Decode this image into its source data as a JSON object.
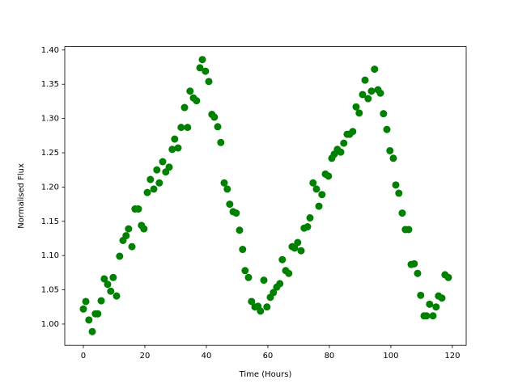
{
  "chart_data": {
    "type": "scatter",
    "xlabel": "Time (Hours)",
    "ylabel": "Normalised Flux",
    "color": "#008000",
    "x": [
      0,
      0.8,
      1.8,
      2.9,
      3.9,
      4.7,
      5.8,
      6.8,
      7.9,
      8.9,
      9.7,
      10.8,
      11.8,
      12.9,
      13.9,
      14.7,
      15.8,
      16.8,
      17.9,
      18.9,
      19.7,
      20.8,
      21.8,
      22.9,
      23.9,
      24.7,
      25.8,
      26.8,
      27.9,
      28.9,
      29.7,
      30.8,
      31.8,
      32.9,
      33.9,
      34.7,
      35.8,
      36.8,
      37.9,
      38.7,
      39.7,
      40.8,
      41.8,
      42.6,
      43.7,
      44.7,
      45.8,
      46.8,
      47.6,
      48.7,
      49.7,
      50.8,
      51.8,
      52.6,
      53.7,
      54.7,
      55.8,
      56.8,
      57.6,
      58.7,
      59.7,
      60.8,
      61.8,
      62.9,
      63.9,
      64.7,
      65.8,
      66.8,
      67.9,
      68.7,
      69.7,
      70.8,
      71.8,
      72.9,
      73.7,
      74.7,
      75.8,
      76.6,
      77.6,
      78.7,
      79.7,
      80.8,
      81.6,
      82.6,
      83.7,
      84.7,
      85.8,
      86.6,
      87.6,
      88.7,
      89.7,
      90.8,
      91.6,
      92.6,
      93.7,
      94.7,
      95.8,
      96.6,
      97.6,
      98.7,
      99.7,
      100.8,
      101.6,
      102.6,
      103.7,
      104.7,
      105.8,
      106.6,
      107.6,
      108.7,
      109.7,
      110.8,
      111.6,
      112.6,
      113.7,
      114.7,
      115.5,
      116.6,
      117.6,
      118.7
    ],
    "values": [
      1.022,
      1.033,
      1.006,
      0.989,
      1.015,
      1.015,
      1.034,
      1.066,
      1.058,
      1.048,
      1.068,
      1.041,
      1.099,
      1.122,
      1.129,
      1.139,
      1.113,
      1.168,
      1.168,
      1.144,
      1.139,
      1.192,
      1.211,
      1.197,
      1.225,
      1.206,
      1.237,
      1.222,
      1.229,
      1.255,
      1.27,
      1.257,
      1.287,
      1.316,
      1.287,
      1.34,
      1.33,
      1.326,
      1.374,
      1.386,
      1.369,
      1.354,
      1.306,
      1.302,
      1.288,
      1.265,
      1.206,
      1.197,
      1.175,
      1.164,
      1.162,
      1.137,
      1.109,
      1.078,
      1.068,
      1.033,
      1.025,
      1.026,
      1.019,
      1.064,
      1.025,
      1.039,
      1.046,
      1.054,
      1.059,
      1.094,
      1.078,
      1.074,
      1.113,
      1.111,
      1.119,
      1.107,
      1.14,
      1.142,
      1.155,
      1.206,
      1.197,
      1.172,
      1.189,
      1.219,
      1.216,
      1.242,
      1.248,
      1.255,
      1.251,
      1.264,
      1.277,
      1.277,
      1.281,
      1.317,
      1.308,
      1.335,
      1.356,
      1.329,
      1.34,
      1.372,
      1.342,
      1.337,
      1.307,
      1.284,
      1.253,
      1.242,
      1.203,
      1.191,
      1.162,
      1.138,
      1.138,
      1.087,
      1.088,
      1.074,
      1.042,
      1.012,
      1.012,
      1.029,
      1.012,
      1.025,
      1.041,
      1.038,
      1.072,
      1.068
    ],
    "xlim": [
      -6.05,
      124.5
    ],
    "xticks": [
      0,
      20,
      40,
      60,
      80,
      100,
      120
    ],
    "ylim": [
      0.969,
      1.405
    ],
    "yticks": [
      {
        "value": 1.0,
        "label": "1.00"
      },
      {
        "value": 1.05,
        "label": "1.05"
      },
      {
        "value": 1.1,
        "label": "1.10"
      },
      {
        "value": 1.15,
        "label": "1.15"
      },
      {
        "value": 1.2,
        "label": "1.20"
      },
      {
        "value": 1.25,
        "label": "1.25"
      },
      {
        "value": 1.3,
        "label": "1.30"
      },
      {
        "value": 1.35,
        "label": "1.35"
      },
      {
        "value": 1.4,
        "label": "1.40"
      }
    ],
    "grid": false
  }
}
